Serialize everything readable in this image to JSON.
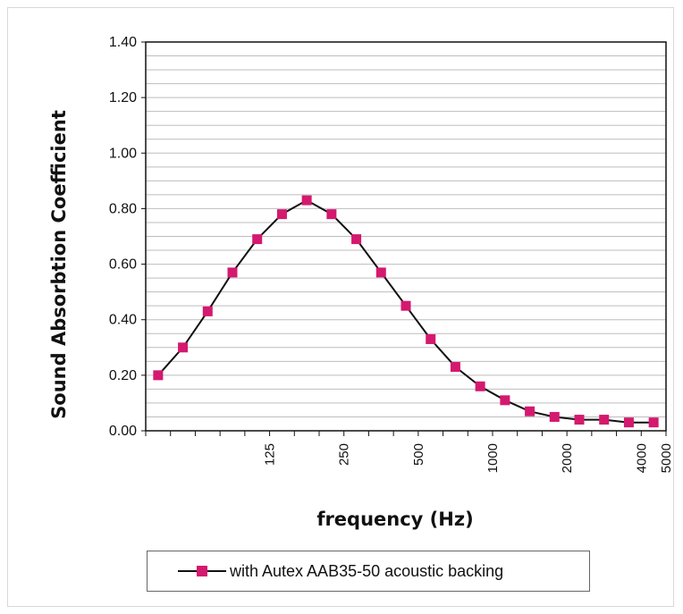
{
  "chart_data": {
    "type": "line",
    "title": "",
    "xlabel": "frequency (Hz)",
    "ylabel": "Sound Absorbtion Coefficient",
    "ylim": [
      0,
      1.4
    ],
    "yticks": [
      "0.00",
      "0.20",
      "0.40",
      "0.60",
      "0.80",
      "1.00",
      "1.20",
      "1.40"
    ],
    "x_tick_labels": [
      {
        "index": 5,
        "label": "125"
      },
      {
        "index": 8,
        "label": "250"
      },
      {
        "index": 11,
        "label": "500"
      },
      {
        "index": 14,
        "label": "1000"
      },
      {
        "index": 17,
        "label": "2000"
      },
      {
        "index": 20,
        "label": "4000"
      },
      {
        "index": 21,
        "label": "5000"
      }
    ],
    "grid": true,
    "legend_position": "bottom",
    "series": [
      {
        "name": "with Autex AAB35-50 acoustic backing",
        "color": "#d4196f",
        "line_color": "#111111",
        "values": [
          0.2,
          0.3,
          0.43,
          0.57,
          0.69,
          0.78,
          0.83,
          0.78,
          0.69,
          0.57,
          0.45,
          0.33,
          0.23,
          0.16,
          0.11,
          0.07,
          0.05,
          0.04,
          0.04,
          0.03,
          0.03
        ]
      }
    ]
  }
}
